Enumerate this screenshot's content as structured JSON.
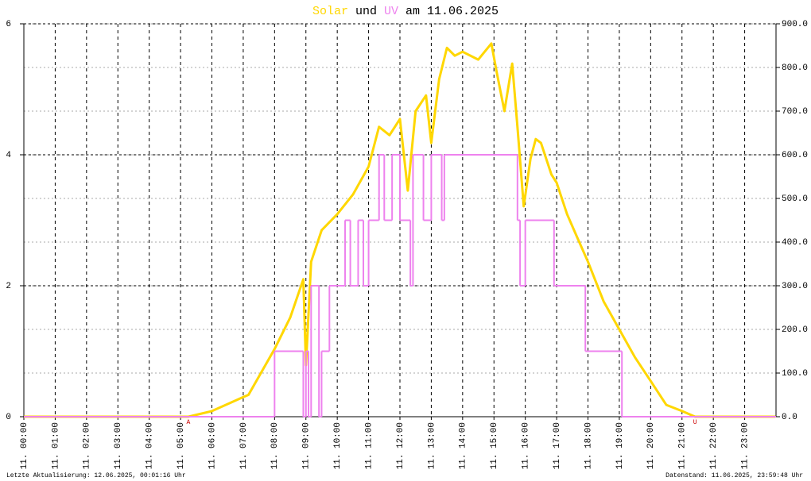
{
  "chart_data": {
    "type": "line",
    "title_join": "und",
    "title_suffix": "am 11.06.2025",
    "footer_left": "Letzte Aktualisierung: 12.06.2025, 00:01:16 Uhr",
    "footer_right": "Datenstand: 11.06.2025, 23:59:48 Uhr",
    "xlim": [
      "00:00",
      "24:00"
    ],
    "xticks": [
      {
        "value": "00:00",
        "label": "11. 00:00"
      },
      {
        "value": "01:00",
        "label": "11. 01:00"
      },
      {
        "value": "02:00",
        "label": "11. 02:00"
      },
      {
        "value": "03:00",
        "label": "11. 03:00"
      },
      {
        "value": "04:00",
        "label": "11. 04:00"
      },
      {
        "value": "05:00",
        "label": "11. 05:00"
      },
      {
        "value": "06:00",
        "label": "11. 06:00"
      },
      {
        "value": "07:00",
        "label": "11. 07:00"
      },
      {
        "value": "08:00",
        "label": "11. 08:00"
      },
      {
        "value": "09:00",
        "label": "11. 09:00"
      },
      {
        "value": "10:00",
        "label": "11. 10:00"
      },
      {
        "value": "11:00",
        "label": "11. 11:00"
      },
      {
        "value": "12:00",
        "label": "11. 12:00"
      },
      {
        "value": "13:00",
        "label": "11. 13:00"
      },
      {
        "value": "14:00",
        "label": "11. 14:00"
      },
      {
        "value": "15:00",
        "label": "11. 15:00"
      },
      {
        "value": "16:00",
        "label": "11. 16:00"
      },
      {
        "value": "17:00",
        "label": "11. 17:00"
      },
      {
        "value": "18:00",
        "label": "11. 18:00"
      },
      {
        "value": "19:00",
        "label": "11. 19:00"
      },
      {
        "value": "20:00",
        "label": "11. 20:00"
      },
      {
        "value": "21:00",
        "label": "11. 21:00"
      },
      {
        "value": "22:00",
        "label": "11. 22:00"
      },
      {
        "value": "23:00",
        "label": "11. 23:00"
      }
    ],
    "ylim": [
      0,
      6
    ],
    "yticks": [
      0,
      2,
      4,
      6
    ],
    "y2lim": [
      0,
      900
    ],
    "y2ticks": [
      {
        "value": 0,
        "label": "0.0"
      },
      {
        "value": 100,
        "label": "100.0"
      },
      {
        "value": 200,
        "label": "200.0"
      },
      {
        "value": 300,
        "label": "300.0"
      },
      {
        "value": 400,
        "label": "400.0"
      },
      {
        "value": 500,
        "label": "500.0"
      },
      {
        "value": 600,
        "label": "600.0"
      },
      {
        "value": 700,
        "label": "700.0"
      },
      {
        "value": 800,
        "label": "800.0"
      },
      {
        "value": 900,
        "label": "900.0"
      }
    ],
    "grid": true,
    "annotations": [
      {
        "text": "A",
        "x": "05:15",
        "color": "#cc0000"
      },
      {
        "text": "U",
        "x": "21:25",
        "color": "#cc0000"
      }
    ],
    "series": [
      {
        "name": "Solar",
        "color": "#ffd700",
        "axis": "y2",
        "step": false,
        "x": [
          "00:00",
          "05:15",
          "06:00",
          "07:00",
          "07:10",
          "08:00",
          "08:30",
          "08:55",
          "09:00",
          "09:10",
          "09:30",
          "10:00",
          "10:30",
          "11:00",
          "11:20",
          "11:40",
          "12:00",
          "12:15",
          "12:30",
          "12:50",
          "13:00",
          "13:15",
          "13:30",
          "13:45",
          "14:00",
          "14:30",
          "14:55",
          "15:05",
          "15:20",
          "15:35",
          "15:45",
          "15:57",
          "16:10",
          "16:20",
          "16:30",
          "16:50",
          "17:00",
          "17:20",
          "17:40",
          "18:00",
          "18:30",
          "19:00",
          "19:30",
          "20:00",
          "20:30",
          "21:00",
          "21:25",
          "23:59"
        ],
        "values": [
          0,
          0,
          13,
          45,
          50,
          155,
          227,
          315,
          118,
          355,
          427,
          464,
          509,
          573,
          664,
          645,
          682,
          518,
          700,
          736,
          627,
          773,
          845,
          827,
          836,
          818,
          855,
          791,
          700,
          809,
          664,
          482,
          591,
          636,
          627,
          555,
          536,
          464,
          409,
          355,
          264,
          200,
          136,
          82,
          27,
          13,
          0,
          0
        ]
      },
      {
        "name": "UV",
        "color": "#ee82ee",
        "axis": "y",
        "step": true,
        "x": [
          "00:00",
          "08:00",
          "08:55",
          "09:00",
          "09:05",
          "09:10",
          "09:25",
          "09:30",
          "09:45",
          "10:15",
          "10:25",
          "10:40",
          "10:50",
          "11:00",
          "11:20",
          "11:30",
          "11:45",
          "12:00",
          "12:20",
          "12:25",
          "12:45",
          "13:00",
          "13:20",
          "13:25",
          "15:45",
          "15:50",
          "16:00",
          "16:55",
          "17:55",
          "19:05"
        ],
        "values": [
          0,
          1,
          0,
          1,
          0,
          2,
          0,
          1,
          2,
          3,
          2,
          3,
          2,
          3,
          4,
          3,
          4,
          3,
          2,
          4,
          3,
          4,
          3,
          4,
          3,
          2,
          3,
          2,
          1,
          0
        ]
      }
    ]
  }
}
